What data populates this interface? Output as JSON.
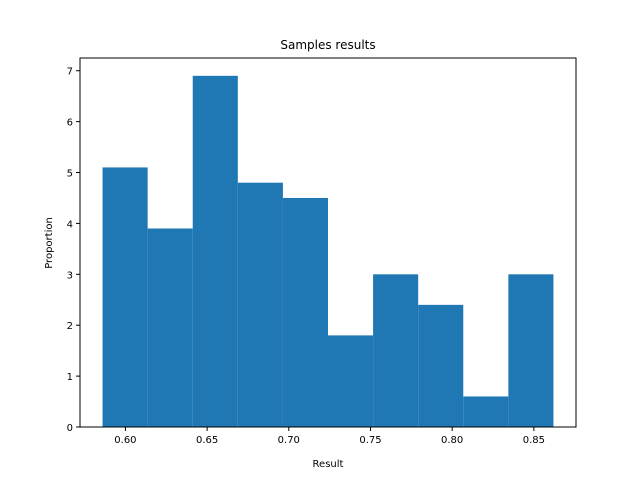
{
  "chart_data": {
    "type": "bar",
    "title": "Samples results",
    "xlabel": "Result",
    "ylabel": "Proportion",
    "bin_edges": [
      0.586,
      0.6136,
      0.6412,
      0.6688,
      0.6964,
      0.724,
      0.7516,
      0.7792,
      0.8068,
      0.8344,
      0.862
    ],
    "values": [
      5.1,
      3.9,
      6.9,
      4.8,
      4.5,
      1.8,
      3.0,
      2.4,
      0.6,
      3.0
    ],
    "xlim": [
      0.5722,
      0.8758
    ],
    "ylim": [
      0,
      7.25
    ],
    "xticks": [
      0.6,
      0.65,
      0.7,
      0.75,
      0.8,
      0.85
    ],
    "xtick_labels": [
      "0.60",
      "0.65",
      "0.70",
      "0.75",
      "0.80",
      "0.85"
    ],
    "yticks": [
      0,
      1,
      2,
      3,
      4,
      5,
      6,
      7
    ],
    "ytick_labels": [
      "0",
      "1",
      "2",
      "3",
      "4",
      "5",
      "6",
      "7"
    ],
    "bar_color": "#1f77b4",
    "grid": false
  }
}
